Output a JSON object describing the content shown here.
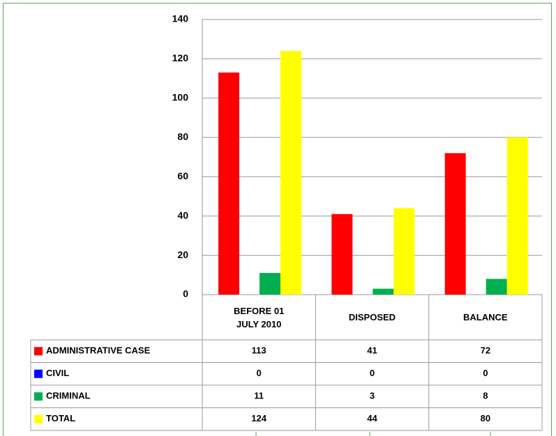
{
  "chart_data": {
    "type": "bar",
    "categories": [
      "BEFORE 01 JULY 2010",
      "DISPOSED",
      "BALANCE"
    ],
    "series": [
      {
        "name": "ADMINISTRATIVE CASE",
        "color": "#ff0000",
        "values": [
          113,
          41,
          72
        ]
      },
      {
        "name": "CIVIL",
        "color": "#0000ff",
        "values": [
          0,
          0,
          0
        ]
      },
      {
        "name": "CRIMINAL",
        "color": "#00b050",
        "values": [
          11,
          3,
          8
        ]
      },
      {
        "name": "TOTAL",
        "color": "#ffff00",
        "values": [
          124,
          44,
          80
        ]
      }
    ],
    "ylim": [
      0,
      140
    ],
    "yticks": [
      0,
      20,
      40,
      60,
      80,
      100,
      120,
      140
    ],
    "grid": true,
    "data_table": true
  }
}
